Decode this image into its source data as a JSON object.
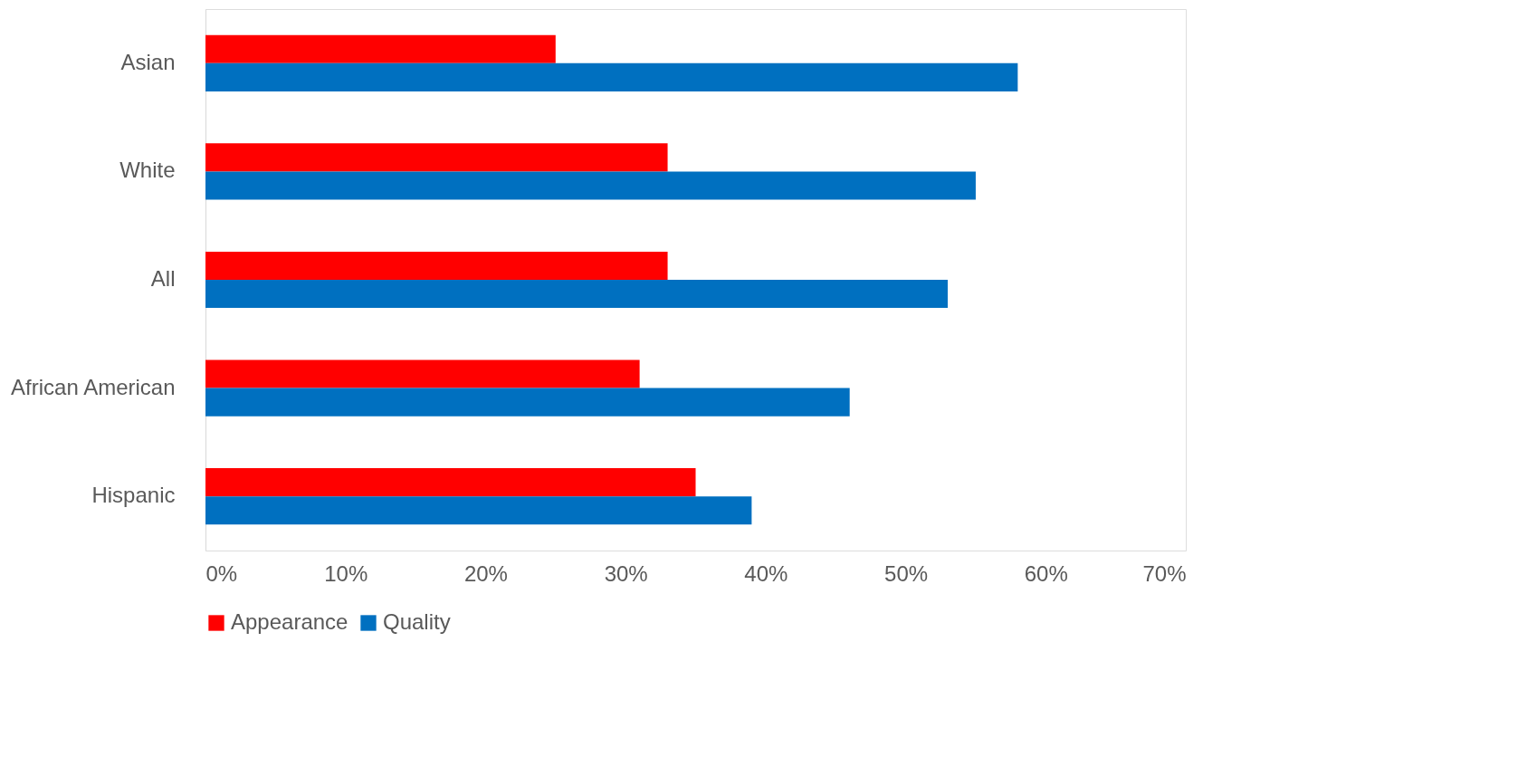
{
  "chart_data": {
    "type": "bar",
    "orientation": "horizontal",
    "categories": [
      "Asian",
      "White",
      "All",
      "African American",
      "Hispanic"
    ],
    "series": [
      {
        "name": "Appearance",
        "color": "#ff0000",
        "values": [
          25,
          33,
          33,
          31,
          35
        ]
      },
      {
        "name": "Quality",
        "color": "#0070c0",
        "values": [
          58,
          55,
          53,
          46,
          39
        ]
      }
    ],
    "xlim": [
      0,
      70
    ],
    "xticks": [
      {
        "value": 0,
        "label": "0%"
      },
      {
        "value": 10,
        "label": "10%"
      },
      {
        "value": 20,
        "label": "20%"
      },
      {
        "value": 30,
        "label": "30%"
      },
      {
        "value": 40,
        "label": "40%"
      },
      {
        "value": 50,
        "label": "50%"
      },
      {
        "value": 60,
        "label": "60%"
      },
      {
        "value": 70,
        "label": "70%"
      }
    ],
    "grid": false,
    "legend": "bottom"
  }
}
